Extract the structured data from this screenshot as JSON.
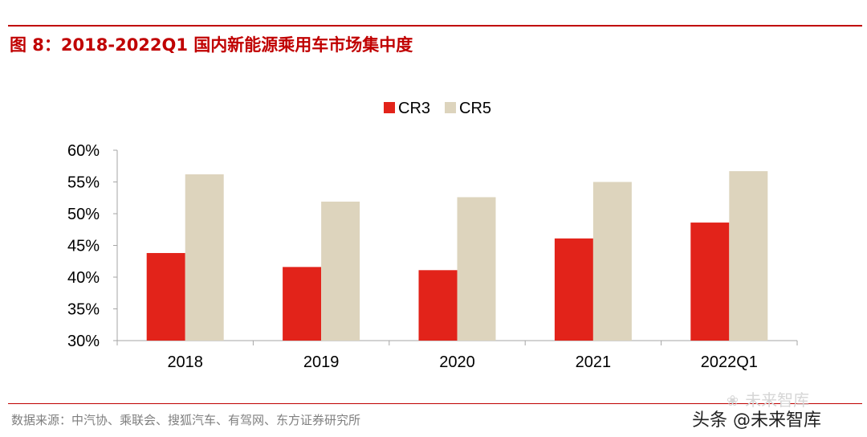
{
  "header": {
    "title": "图 8：2018-2022Q1 国内新能源乘用车市场集中度"
  },
  "chart_data": {
    "type": "bar",
    "title": "图 8：2018-2022Q1 国内新能源乘用车市场集中度",
    "categories": [
      "2018",
      "2019",
      "2020",
      "2021",
      "2022Q1"
    ],
    "series": [
      {
        "name": "CR3",
        "color": "#e2231a",
        "values": [
          43.8,
          41.6,
          41.1,
          46.1,
          48.6
        ]
      },
      {
        "name": "CR5",
        "color": "#ddd4bd",
        "values": [
          56.2,
          51.9,
          52.6,
          55.0,
          56.7
        ]
      }
    ],
    "ylim": [
      30,
      60
    ],
    "yticks": [
      30,
      35,
      40,
      45,
      50,
      55,
      60
    ],
    "ytick_labels": [
      "30%",
      "35%",
      "40%",
      "45%",
      "50%",
      "55%",
      "60%"
    ],
    "xlabel": "",
    "ylabel": "",
    "legend": "top-center",
    "grid": false
  },
  "footer": {
    "source": "数据来源：中汽协、乘联会、搜狐汽车、有驾网、东方证券研究所",
    "watermark_light": "未来智库",
    "watermark_dark": "头条 @未来智库"
  }
}
